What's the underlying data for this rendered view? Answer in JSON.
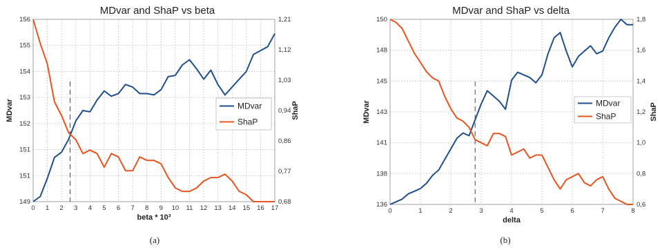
{
  "panels": [
    {
      "caption": "(a)"
    },
    {
      "caption": "(b)"
    }
  ],
  "chart_data": [
    {
      "type": "line",
      "title": "MDvar and ShaP vs beta",
      "xlabel": "beta * 10³",
      "ylabel": "MDvar",
      "y2label": "ShaP",
      "xlim": [
        0,
        17
      ],
      "ylim": [
        149,
        156
      ],
      "y2lim": [
        0.68,
        1.21
      ],
      "xticks": [
        "0",
        "1",
        "2",
        "3",
        "4",
        "5",
        "6",
        "7",
        "8",
        "9",
        "10",
        "11",
        "12",
        "13",
        "14",
        "15",
        "16",
        "17"
      ],
      "yticks": [
        "149",
        "151",
        "151",
        "152",
        "153",
        "154",
        "155",
        "156"
      ],
      "y2ticks": [
        "0,68",
        "0,77",
        "0,86",
        "0,94",
        "1,03",
        "1,12",
        "1,21"
      ],
      "grid": true,
      "legend_position": "right",
      "vline_x": 2.6,
      "series": [
        {
          "name": "MDvar",
          "axis": "left",
          "color": "#1f4e8c",
          "x": [
            0,
            0.5,
            1,
            1.5,
            2,
            2.5,
            3,
            3.5,
            4,
            4.5,
            5,
            5.5,
            6,
            6.5,
            7,
            7.5,
            8,
            8.5,
            9,
            9.5,
            10,
            10.5,
            11,
            11.5,
            12,
            12.5,
            13,
            13.5,
            14,
            14.5,
            15,
            15.5,
            16,
            16.5,
            17
          ],
          "y": [
            149,
            149.2,
            149.9,
            150.7,
            150.9,
            151.4,
            152.1,
            152.5,
            152.45,
            152.9,
            153.25,
            153.05,
            153.15,
            153.5,
            153.4,
            153.15,
            153.15,
            153.1,
            153.3,
            153.8,
            153.85,
            154.25,
            154.45,
            154.1,
            153.7,
            154.05,
            153.5,
            153.1,
            153.4,
            153.7,
            154,
            154.65,
            154.8,
            154.95,
            155.45
          ]
        },
        {
          "name": "ShaP",
          "axis": "right",
          "color": "#e8531e",
          "x": [
            0,
            0.5,
            1,
            1.5,
            2,
            2.5,
            3,
            3.5,
            4,
            4.5,
            5,
            5.5,
            6,
            6.5,
            7,
            7.5,
            8,
            8.5,
            9,
            9.5,
            10,
            10.5,
            11,
            11.5,
            12,
            12.5,
            13,
            13.5,
            14,
            14.5,
            15,
            15.5,
            16,
            16.5,
            17
          ],
          "y": [
            1.21,
            1.14,
            1.08,
            0.97,
            0.93,
            0.88,
            0.86,
            0.82,
            0.83,
            0.82,
            0.78,
            0.82,
            0.81,
            0.77,
            0.77,
            0.81,
            0.8,
            0.8,
            0.79,
            0.75,
            0.72,
            0.71,
            0.71,
            0.72,
            0.74,
            0.75,
            0.75,
            0.76,
            0.74,
            0.71,
            0.7,
            0.68,
            0.68,
            0.68,
            0.68
          ]
        }
      ]
    },
    {
      "type": "line",
      "title": "MDvar and ShaP vs delta",
      "xlabel": "delta",
      "ylabel": "MDvar",
      "y2label": "ShaP",
      "xlim": [
        0,
        8
      ],
      "ylim": [
        136,
        150
      ],
      "y2lim": [
        0.6,
        1.8
      ],
      "xticks": [
        "0",
        "1",
        "2",
        "3",
        "4",
        "5",
        "6",
        "7",
        "8"
      ],
      "yticks": [
        "136",
        "138",
        "141",
        "143",
        "145",
        "148",
        "150"
      ],
      "y2ticks": [
        "0,6",
        "0,8",
        "1,0",
        "1,2",
        "1,4",
        "1,6",
        "1,8"
      ],
      "grid": true,
      "legend_position": "right",
      "vline_x": 2.8,
      "series": [
        {
          "name": "MDvar",
          "axis": "left",
          "color": "#1f4e8c",
          "x": [
            0,
            0.2,
            0.4,
            0.6,
            0.8,
            1,
            1.2,
            1.4,
            1.6,
            1.8,
            2,
            2.2,
            2.4,
            2.6,
            2.8,
            3,
            3.2,
            3.4,
            3.6,
            3.8,
            4,
            4.2,
            4.4,
            4.6,
            4.8,
            5,
            5.2,
            5.4,
            5.6,
            5.8,
            6,
            6.2,
            6.4,
            6.6,
            6.8,
            7,
            7.2,
            7.4,
            7.6,
            7.8,
            8
          ],
          "y": [
            136,
            136.2,
            136.4,
            136.8,
            137,
            137.2,
            137.6,
            138.2,
            138.6,
            139.4,
            140.2,
            141,
            141.4,
            141.2,
            142.4,
            143.6,
            144.6,
            144.2,
            143.8,
            143.2,
            145.4,
            146,
            145.8,
            145.6,
            145.2,
            145.8,
            147.4,
            148.6,
            149,
            147.6,
            146.4,
            147.2,
            147.6,
            148,
            147.4,
            147.6,
            148.6,
            149.4,
            150,
            149.6,
            149.6
          ]
        },
        {
          "name": "ShaP",
          "axis": "right",
          "color": "#e8531e",
          "x": [
            0,
            0.2,
            0.4,
            0.6,
            0.8,
            1,
            1.2,
            1.4,
            1.6,
            1.8,
            2,
            2.2,
            2.4,
            2.6,
            2.8,
            3,
            3.2,
            3.4,
            3.6,
            3.8,
            4,
            4.2,
            4.4,
            4.6,
            4.8,
            5,
            5.2,
            5.4,
            5.6,
            5.8,
            6,
            6.2,
            6.4,
            6.6,
            6.8,
            7,
            7.2,
            7.4,
            7.6,
            7.8,
            8
          ],
          "y": [
            1.8,
            1.78,
            1.74,
            1.66,
            1.58,
            1.52,
            1.46,
            1.42,
            1.4,
            1.3,
            1.22,
            1.16,
            1.14,
            1.1,
            1.02,
            1,
            0.98,
            1.06,
            1.06,
            1.04,
            0.92,
            0.94,
            0.96,
            0.9,
            0.92,
            0.92,
            0.84,
            0.76,
            0.7,
            0.76,
            0.78,
            0.8,
            0.74,
            0.72,
            0.76,
            0.78,
            0.7,
            0.64,
            0.62,
            0.6,
            0.6
          ]
        }
      ]
    }
  ]
}
